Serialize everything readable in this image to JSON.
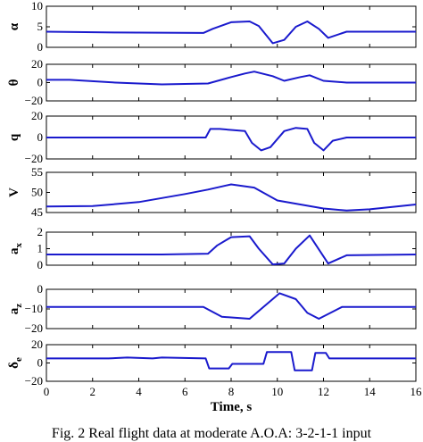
{
  "figure": {
    "caption": "Fig. 2 Real flight data at moderate A.O.A: 3-2-1-1 input"
  },
  "chart_data": [
    {
      "type": "line",
      "ylabel_glyph": "α",
      "ylabel_sub": "",
      "xlim": [
        0,
        16
      ],
      "ylim": [
        0,
        10
      ],
      "yticks": [
        0,
        5,
        10
      ],
      "series": [
        {
          "x": [
            0,
            3,
            6.8,
            7.2,
            8,
            8.8,
            9.2,
            9.8,
            10.3,
            10.8,
            11.3,
            11.8,
            12.2,
            13,
            16
          ],
          "y": [
            3.8,
            3.6,
            3.5,
            4.5,
            6.1,
            6.3,
            5.2,
            1.0,
            1.8,
            5.0,
            6.3,
            4.5,
            2.3,
            3.8,
            3.8
          ]
        }
      ]
    },
    {
      "type": "line",
      "ylabel_glyph": "θ",
      "ylabel_sub": "",
      "xlim": [
        0,
        16
      ],
      "ylim": [
        -20,
        20
      ],
      "yticks": [
        -20,
        0,
        20
      ],
      "series": [
        {
          "x": [
            0,
            1,
            3,
            5,
            7,
            8,
            8.6,
            9,
            9.8,
            10.3,
            11,
            11.4,
            12,
            13,
            16
          ],
          "y": [
            3,
            3,
            0,
            -2,
            -1,
            6,
            10,
            12,
            7,
            2,
            6,
            8,
            2,
            0,
            0
          ]
        }
      ]
    },
    {
      "type": "line",
      "ylabel_glyph": "q",
      "ylabel_sub": "",
      "xlim": [
        0,
        16
      ],
      "ylim": [
        -20,
        20
      ],
      "yticks": [
        -20,
        0,
        20
      ],
      "series": [
        {
          "x": [
            0,
            3,
            6.9,
            7.1,
            7.5,
            8.6,
            8.9,
            9.3,
            9.7,
            10.3,
            10.8,
            11.3,
            11.6,
            12,
            12.4,
            13,
            16
          ],
          "y": [
            0,
            0,
            0,
            8,
            8,
            6,
            -5,
            -12,
            -9,
            6,
            9,
            8,
            -5,
            -12,
            -3,
            0,
            0
          ]
        }
      ]
    },
    {
      "type": "line",
      "ylabel_glyph": "V",
      "ylabel_sub": "",
      "xlim": [
        0,
        16
      ],
      "ylim": [
        45,
        55
      ],
      "yticks": [
        45,
        50,
        55
      ],
      "series": [
        {
          "x": [
            0,
            2,
            4,
            6,
            7,
            8,
            9,
            10,
            11,
            12,
            13,
            14,
            16
          ],
          "y": [
            46.5,
            46.6,
            47.6,
            49.6,
            50.7,
            52,
            51.2,
            48,
            47,
            46,
            45.5,
            45.8,
            47
          ]
        }
      ]
    },
    {
      "type": "line",
      "ylabel_glyph": "a",
      "ylabel_sub": "x",
      "xlim": [
        0,
        16
      ],
      "ylim": [
        0,
        2
      ],
      "yticks": [
        0,
        1,
        2
      ],
      "series": [
        {
          "x": [
            0,
            5,
            7,
            7.4,
            8,
            8.8,
            9.2,
            9.8,
            10.3,
            10.8,
            11.4,
            12.2,
            13,
            16
          ],
          "y": [
            0.65,
            0.65,
            0.7,
            1.2,
            1.7,
            1.75,
            1.0,
            0.05,
            0.1,
            1.0,
            1.8,
            0.1,
            0.6,
            0.65
          ]
        }
      ]
    },
    {
      "type": "line",
      "ylabel_glyph": "a",
      "ylabel_sub": "z",
      "xlim": [
        0,
        16
      ],
      "ylim": [
        -20,
        0
      ],
      "yticks": [
        -20,
        -10,
        0
      ],
      "series": [
        {
          "x": [
            0,
            6.8,
            7.6,
            8.8,
            9.3,
            10.1,
            10.8,
            11.3,
            11.8,
            12.3,
            12.8,
            16
          ],
          "y": [
            -9,
            -9,
            -14,
            -15,
            -10,
            -2,
            -5,
            -12,
            -15,
            -12,
            -9,
            -9
          ]
        }
      ]
    },
    {
      "type": "line",
      "ylabel_glyph": "δ",
      "ylabel_sub": "e",
      "xlim": [
        0,
        16
      ],
      "ylim": [
        -20,
        20
      ],
      "yticks": [
        -20,
        0,
        20
      ],
      "xticks": [
        0,
        2,
        4,
        6,
        8,
        10,
        12,
        14,
        16
      ],
      "xlabel": "Time, s",
      "series": [
        {
          "x": [
            0,
            2.7,
            3.5,
            4.6,
            5,
            6.9,
            7.05,
            7.5,
            7.9,
            8.05,
            9.4,
            9.55,
            10.6,
            10.75,
            11.5,
            11.65,
            12.1,
            12.25,
            16
          ],
          "y": [
            5,
            5,
            6,
            5,
            6,
            5,
            -6,
            -6,
            -6,
            -1,
            -1,
            12,
            12,
            -8,
            -8,
            11,
            11,
            5,
            5
          ]
        }
      ]
    }
  ]
}
